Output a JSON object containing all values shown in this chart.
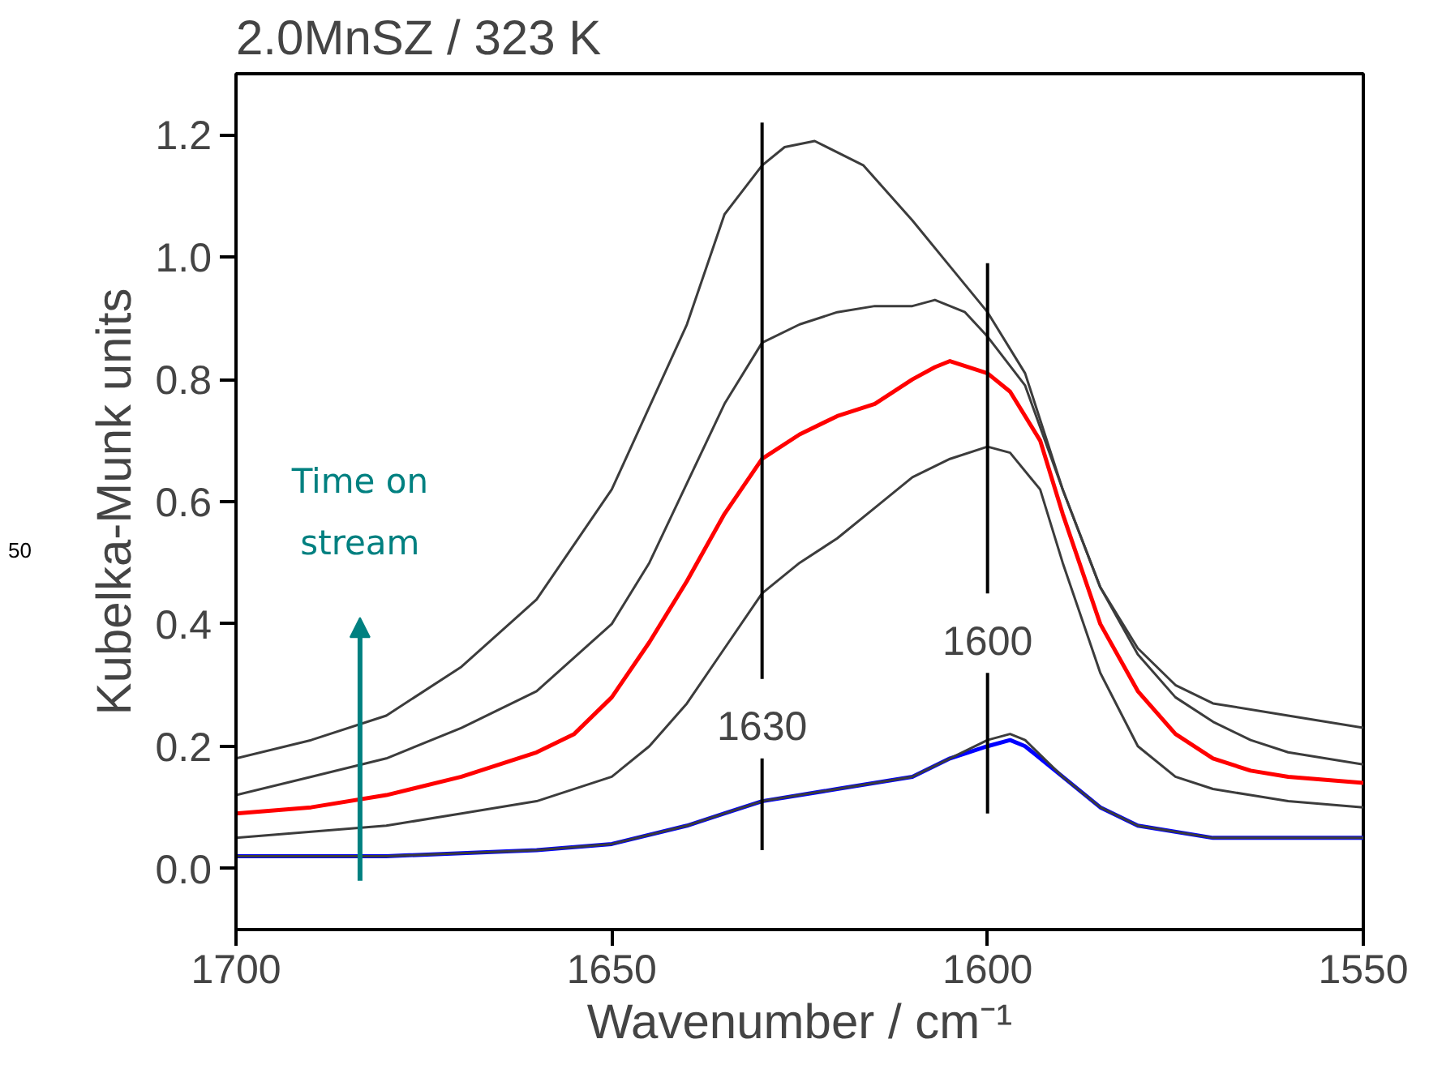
{
  "chart_data": {
    "type": "line",
    "title": "2.0MnSZ / 323 K",
    "xlabel": "Wavenumber / cm⁻¹",
    "ylabel": "Kubelka-Munk units",
    "xlim": [
      1700,
      1550
    ],
    "xticks": [
      1700,
      1650,
      1600,
      1550
    ],
    "ylim": [
      -0.1,
      1.3
    ],
    "yticks": [
      {
        "value": 0,
        "label": "0.0"
      },
      {
        "value": 0.2,
        "label": "0.2"
      },
      {
        "value": 0.4,
        "label": "0.4"
      },
      {
        "value": 0.6,
        "label": "0.6"
      },
      {
        "value": 0.8,
        "label": "0.8"
      },
      {
        "value": 1,
        "label": "1.0"
      },
      {
        "value": 1.2,
        "label": "1.2"
      }
    ],
    "grid": false,
    "marker": "none",
    "line_style": "solid",
    "annotations": [
      "Time on stream",
      "50"
    ],
    "ref_lines": [
      {
        "axis": "x",
        "value": 1630,
        "label": "1630",
        "color": "#000000"
      },
      {
        "axis": "x",
        "value": 1600,
        "label": "1600",
        "color": "#000000"
      }
    ],
    "series": [
      {
        "color": "#3c3c3c",
        "x": [
          1700,
          1690,
          1680,
          1670,
          1660,
          1650,
          1640,
          1635,
          1630,
          1627,
          1623,
          1616.5,
          1610,
          1605,
          1600,
          1595,
          1590,
          1585,
          1580,
          1575,
          1570,
          1560,
          1550
        ],
        "values": [
          0.18,
          0.21,
          0.25,
          0.33,
          0.44,
          0.62,
          0.89,
          1.07,
          1.15,
          1.18,
          1.19,
          1.15,
          1.06,
          0.985,
          0.91,
          0.81,
          0.62,
          0.46,
          0.36,
          0.3,
          0.27,
          0.25,
          0.23
        ]
      },
      {
        "color": "#3c3c3c",
        "x": [
          1700,
          1690,
          1680,
          1670,
          1660,
          1650,
          1645,
          1640,
          1635,
          1630,
          1625,
          1620,
          1615,
          1610,
          1607,
          1603,
          1600,
          1595,
          1590,
          1585,
          1580,
          1575,
          1570,
          1565,
          1560,
          1550
        ],
        "values": [
          0.12,
          0.15,
          0.18,
          0.23,
          0.29,
          0.4,
          0.5,
          0.63,
          0.76,
          0.86,
          0.89,
          0.91,
          0.92,
          0.92,
          0.93,
          0.91,
          0.87,
          0.79,
          0.62,
          0.46,
          0.35,
          0.28,
          0.24,
          0.21,
          0.19,
          0.17
        ]
      },
      {
        "color": "#ff0000",
        "x": [
          1700,
          1690,
          1680,
          1670,
          1660,
          1655,
          1650,
          1645,
          1640,
          1635,
          1630,
          1625,
          1620,
          1615,
          1610,
          1607,
          1605,
          1600,
          1597,
          1593,
          1590,
          1585,
          1580,
          1575,
          1570,
          1565,
          1560,
          1550
        ],
        "values": [
          0.09,
          0.1,
          0.12,
          0.15,
          0.19,
          0.22,
          0.28,
          0.37,
          0.47,
          0.58,
          0.67,
          0.71,
          0.74,
          0.76,
          0.8,
          0.82,
          0.83,
          0.81,
          0.78,
          0.7,
          0.58,
          0.4,
          0.29,
          0.22,
          0.18,
          0.16,
          0.15,
          0.14
        ]
      },
      {
        "color": "#3c3c3c",
        "x": [
          1700,
          1690,
          1680,
          1670,
          1660,
          1650,
          1645,
          1640,
          1635,
          1630,
          1625,
          1620,
          1615,
          1610,
          1605,
          1600,
          1597,
          1593,
          1590,
          1585,
          1580,
          1575,
          1570,
          1565,
          1560,
          1550
        ],
        "values": [
          0.05,
          0.06,
          0.07,
          0.09,
          0.11,
          0.15,
          0.2,
          0.27,
          0.36,
          0.45,
          0.5,
          0.54,
          0.59,
          0.64,
          0.67,
          0.69,
          0.68,
          0.62,
          0.5,
          0.32,
          0.2,
          0.15,
          0.13,
          0.12,
          0.11,
          0.1
        ]
      },
      {
        "color": "#3c3c3c",
        "x": [
          1700,
          1680,
          1660,
          1650,
          1640,
          1635,
          1630,
          1620,
          1610,
          1605,
          1600,
          1597,
          1595,
          1590,
          1585,
          1580,
          1570,
          1560,
          1550
        ],
        "values": [
          0.02,
          0.02,
          0.03,
          0.04,
          0.07,
          0.09,
          0.11,
          0.13,
          0.15,
          0.18,
          0.21,
          0.22,
          0.21,
          0.15,
          0.1,
          0.07,
          0.05,
          0.05,
          0.05
        ]
      },
      {
        "color": "#0000ff",
        "x": [
          1700,
          1680,
          1660,
          1650,
          1640,
          1635,
          1630,
          1620,
          1610,
          1605,
          1600,
          1597,
          1595,
          1590,
          1585,
          1580,
          1570,
          1560,
          1550
        ],
        "values": [
          0.02,
          0.02,
          0.03,
          0.04,
          0.07,
          0.09,
          0.11,
          0.13,
          0.15,
          0.18,
          0.2,
          0.21,
          0.2,
          0.15,
          0.1,
          0.07,
          0.05,
          0.05,
          0.05
        ]
      }
    ]
  }
}
